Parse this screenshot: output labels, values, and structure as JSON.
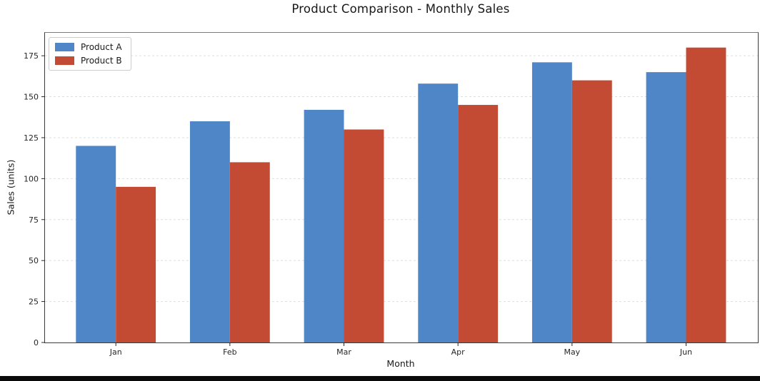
{
  "title": "Product Comparison - Monthly Sales",
  "chart_data": {
    "type": "bar",
    "categories": [
      "Jan",
      "Feb",
      "Mar",
      "Apr",
      "May",
      "Jun"
    ],
    "series": [
      {
        "name": "Product A",
        "color": "#4f86c8",
        "values": [
          120,
          135,
          142,
          158,
          171,
          165
        ]
      },
      {
        "name": "Product B",
        "color": "#c34b33",
        "values": [
          95,
          110,
          130,
          145,
          160,
          180
        ]
      }
    ],
    "title": "Product Comparison - Monthly Sales",
    "xlabel": "Month",
    "ylabel": "Sales (units)",
    "ylim": [
      0,
      189
    ],
    "yticks": [
      0,
      25,
      50,
      75,
      100,
      125,
      150,
      175
    ],
    "grid": "horizontal dashed gridlines at each y tick",
    "legend_position": "upper-left",
    "gridline_color": "#dddddd",
    "spine_color": "#3a3a3a",
    "tick_label_color": "#262626"
  },
  "footer_bar": {
    "color": "#0a0a0a"
  }
}
